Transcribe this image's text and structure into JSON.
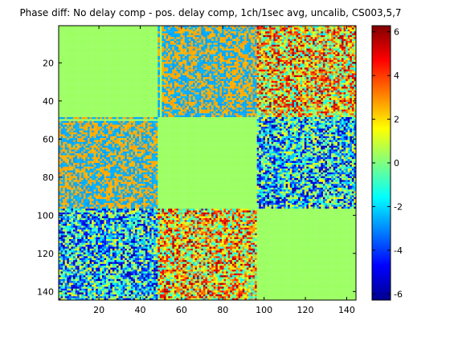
{
  "chart_data": {
    "type": "heatmap",
    "title": "Phase diff: No delay comp - pos. delay comp, 1ch/1sec avg, uncalib, CS003,5,7",
    "xlabel": "",
    "ylabel": "",
    "xlim": [
      0.5,
      144.5
    ],
    "ylim": [
      144.5,
      0.5
    ],
    "y_reversed": true,
    "matrix_size": [
      144,
      144
    ],
    "x_ticks": [
      20,
      40,
      60,
      80,
      100,
      120,
      140
    ],
    "x_tick_labels": [
      "20",
      "40",
      "60",
      "80",
      "100",
      "120",
      "140"
    ],
    "y_ticks": [
      20,
      40,
      60,
      80,
      100,
      120,
      140
    ],
    "y_tick_labels": [
      "20",
      "40",
      "60",
      "80",
      "100",
      "120",
      "140"
    ],
    "colorbar": {
      "colormap": "jet",
      "range": [
        -6.2832,
        6.2832
      ],
      "ticks": [
        6,
        4,
        2,
        0,
        -2,
        -4,
        -6
      ],
      "tick_labels": [
        "6",
        "4",
        "2",
        "0",
        "-2",
        "-4",
        "-6"
      ]
    },
    "station_blocks": [
      {
        "station": "CS003",
        "start": 1,
        "end": 48
      },
      {
        "station": "CS005",
        "start": 49,
        "end": 96
      },
      {
        "station": "CS007",
        "start": 97,
        "end": 144
      }
    ],
    "block_pattern": [
      [
        "uniform",
        "bimodal",
        "noisy-positive"
      ],
      [
        "bimodal",
        "uniform",
        "noisy-negative"
      ],
      [
        "noisy-negative",
        "noisy-positive",
        "uniform"
      ]
    ],
    "pattern_values": {
      "uniform": {
        "center": 0.35
      },
      "bimodal": {
        "modes": [
          -2.6,
          2.6
        ],
        "mode_probability": 0.5
      },
      "noisy-positive": {
        "center": 2.0,
        "spread": 4.0
      },
      "noisy-negative": {
        "center": -2.0,
        "spread": 4.0
      }
    },
    "special_lines": [
      {
        "orientation": "vertical",
        "index": 50,
        "value": 0.35,
        "rows": [
          1,
          48
        ]
      },
      {
        "orientation": "horizontal",
        "index": 50,
        "value": 0.35,
        "cols": [
          1,
          48
        ]
      }
    ],
    "grid": false
  }
}
